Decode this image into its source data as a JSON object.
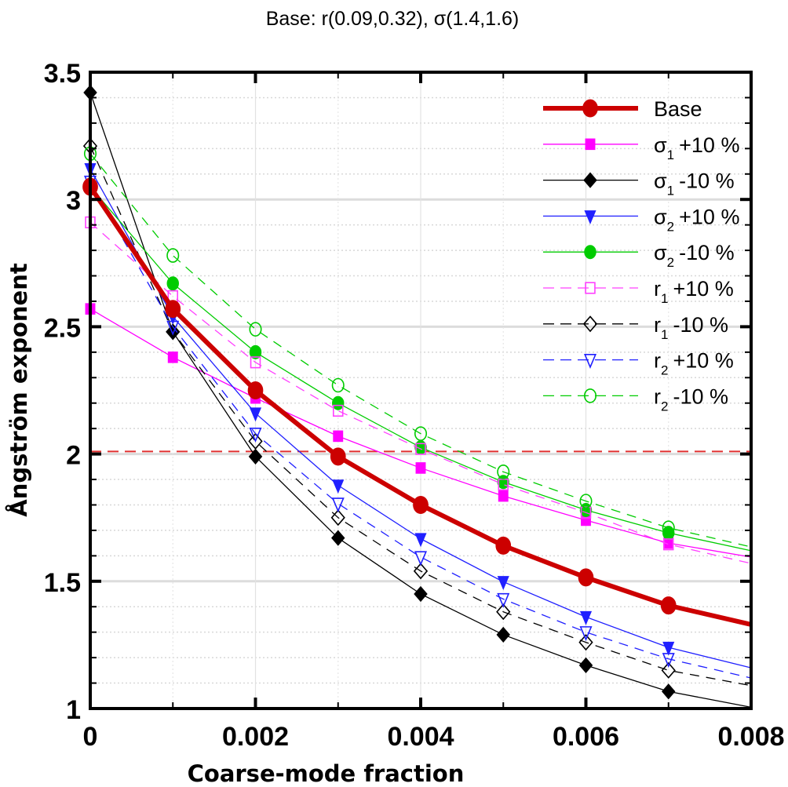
{
  "chart_data": {
    "type": "line",
    "title": "Base: r(0.09,0.32), σ(1.4,1.6)",
    "xlabel": "Coarse-mode fraction",
    "ylabel": "Ångström exponent",
    "xlim": [
      0,
      0.008
    ],
    "ylim": [
      1,
      3.5
    ],
    "xticks": [
      "0",
      "0.002",
      "0.004",
      "0.006",
      "0.008"
    ],
    "yticks": [
      "1",
      "1.5",
      "2",
      "2.5",
      "3",
      "3.5"
    ],
    "grid": true,
    "legend_position": "top-right",
    "reference_line": {
      "y": 2.01,
      "color": "#e03030",
      "style": "dashed"
    },
    "x": [
      0,
      0.001,
      0.002,
      0.003,
      0.004,
      0.005,
      0.006,
      0.007,
      0.008
    ],
    "series": [
      {
        "name": "Base",
        "sym": "Base",
        "sub": "",
        "suffix": "",
        "color": "#cc0000",
        "marker": "circle",
        "filled": true,
        "dashed": false,
        "width": 6,
        "values": [
          3.05,
          2.57,
          2.25,
          1.99,
          1.8,
          1.64,
          1.515,
          1.405,
          1.33
        ]
      },
      {
        "name": "σ1 +10 %",
        "sym": "σ",
        "sub": "1",
        "suffix": "+10 %",
        "color": "#ff00ff",
        "marker": "square",
        "filled": true,
        "dashed": false,
        "width": 1.3,
        "values": [
          2.57,
          2.38,
          2.22,
          2.07,
          1.945,
          1.835,
          1.74,
          1.65,
          1.595
        ]
      },
      {
        "name": "σ1 -10 %",
        "sym": "σ",
        "sub": "1",
        "suffix": "-10 %",
        "color": "#000000",
        "marker": "diamond",
        "filled": true,
        "dashed": false,
        "width": 1.3,
        "values": [
          3.42,
          2.48,
          1.99,
          1.67,
          1.45,
          1.29,
          1.17,
          1.067,
          1.005
        ]
      },
      {
        "name": "σ2 +10 %",
        "sym": "σ",
        "sub": "2",
        "suffix": "+10 %",
        "color": "#2020ff",
        "marker": "triangle-down",
        "filled": true,
        "dashed": false,
        "width": 1.3,
        "values": [
          3.12,
          2.54,
          2.16,
          1.877,
          1.667,
          1.498,
          1.36,
          1.24,
          1.16
        ]
      },
      {
        "name": "σ2 -10 %",
        "sym": "σ",
        "sub": "2",
        "suffix": "-10 %",
        "color": "#00cc00",
        "marker": "circle",
        "filled": true,
        "dashed": false,
        "width": 1.3,
        "values": [
          3.05,
          2.67,
          2.4,
          2.2,
          2.026,
          1.89,
          1.78,
          1.69,
          1.62
        ]
      },
      {
        "name": "r1 +10 %",
        "sym": "r",
        "sub": "1",
        "suffix": "+10 %",
        "color": "#ff40ff",
        "marker": "square",
        "filled": false,
        "dashed": true,
        "width": 1.3,
        "values": [
          2.91,
          2.62,
          2.36,
          2.17,
          2.02,
          1.88,
          1.77,
          1.645,
          1.57
        ]
      },
      {
        "name": "r1 -10 %",
        "sym": "r",
        "sub": "1",
        "suffix": "-10 %",
        "color": "#000000",
        "marker": "diamond",
        "filled": false,
        "dashed": true,
        "width": 1.3,
        "values": [
          3.21,
          2.48,
          2.05,
          1.75,
          1.54,
          1.38,
          1.26,
          1.15,
          1.09
        ]
      },
      {
        "name": "r2 +10 %",
        "sym": "r",
        "sub": "2",
        "suffix": "+10 %",
        "color": "#2020ff",
        "marker": "triangle-down",
        "filled": false,
        "dashed": true,
        "width": 1.3,
        "values": [
          3.07,
          2.5,
          2.08,
          1.805,
          1.595,
          1.43,
          1.3,
          1.195,
          1.12
        ]
      },
      {
        "name": "r2 -10 %",
        "sym": "r",
        "sub": "2",
        "suffix": "-10 %",
        "color": "#00cc00",
        "marker": "circle",
        "filled": false,
        "dashed": true,
        "width": 1.3,
        "values": [
          3.18,
          2.78,
          2.49,
          2.27,
          2.08,
          1.93,
          1.815,
          1.71,
          1.635
        ]
      }
    ]
  }
}
